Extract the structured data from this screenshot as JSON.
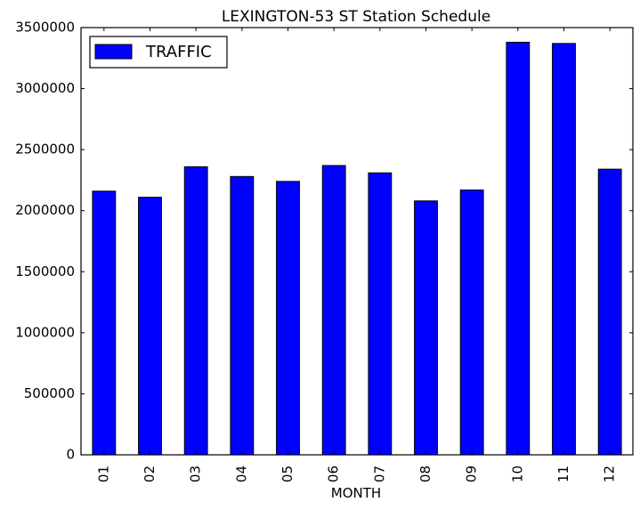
{
  "chart_data": {
    "type": "bar",
    "title": "LEXINGTON-53 ST Station Schedule",
    "xlabel": "MONTH",
    "ylabel": "",
    "categories": [
      "01",
      "02",
      "03",
      "04",
      "05",
      "06",
      "07",
      "08",
      "09",
      "10",
      "11",
      "12"
    ],
    "series": [
      {
        "name": "TRAFFIC",
        "values": [
          2160000,
          2110000,
          2360000,
          2280000,
          2240000,
          2370000,
          2310000,
          2080000,
          2170000,
          3380000,
          3370000,
          2340000
        ]
      }
    ],
    "ylim": [
      0,
      3500000
    ],
    "yticks": [
      0,
      500000,
      1000000,
      1500000,
      2000000,
      2500000,
      3000000,
      3500000
    ],
    "ytick_labels": [
      "0",
      "500000",
      "1000000",
      "1500000",
      "2000000",
      "2500000",
      "3000000",
      "3500000"
    ],
    "legend": {
      "placement": "top-left",
      "entries": [
        "TRAFFIC"
      ]
    },
    "grid": false,
    "colors": {
      "bar_fill": "#0000ff",
      "bar_edge": "#000000",
      "axis": "#000000",
      "background": "#ffffff"
    }
  }
}
